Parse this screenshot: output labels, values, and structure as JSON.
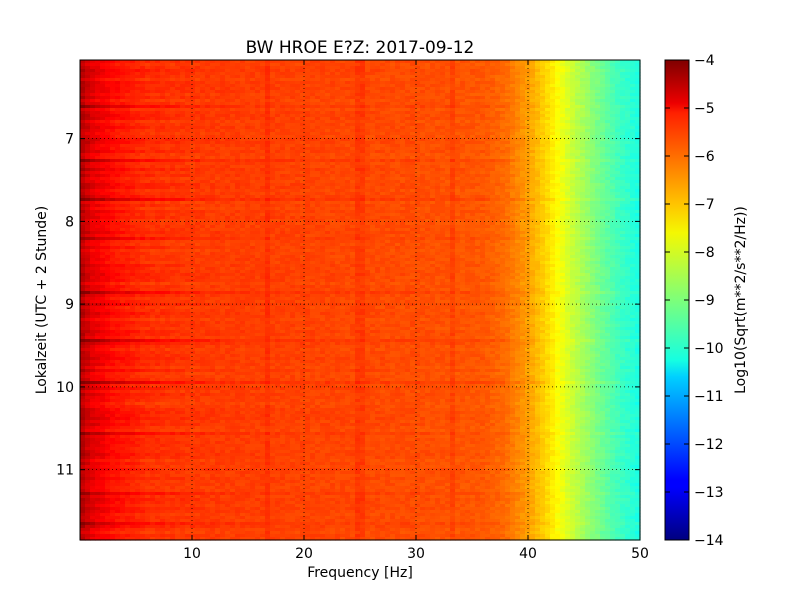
{
  "chart_data": {
    "type": "heatmap",
    "title": "BW HROE E?Z: 2017-09-12",
    "xlabel": "Frequency [Hz]",
    "ylabel": "Lokalzeit (UTC + 2 Stunde)",
    "colorbar_label": "Log10(Sqrt(m**2/s**2/Hz))",
    "xlim": [
      0,
      50
    ],
    "ylim": [
      6.05,
      11.85
    ],
    "y_inverted": true,
    "x_ticks": [
      10,
      20,
      30,
      40,
      50
    ],
    "y_ticks": [
      7,
      8,
      9,
      10,
      11
    ],
    "clim": [
      -14,
      -4
    ],
    "colorbar_ticks": [
      -4,
      -5,
      -6,
      -7,
      -8,
      -9,
      -10,
      -11,
      -12,
      -13,
      -14
    ],
    "colormap": "jet",
    "grid": true,
    "grid_style": "dotted",
    "spectrum_profile": {
      "frequency_hz": [
        0,
        1,
        3,
        6,
        10,
        20,
        30,
        36,
        38,
        40,
        42,
        44,
        46,
        48,
        50
      ],
      "log10_amplitude": [
        -4.5,
        -5.0,
        -5.4,
        -5.7,
        -5.8,
        -5.9,
        -6.0,
        -6.1,
        -6.3,
        -6.8,
        -7.5,
        -8.3,
        -9.0,
        -9.6,
        -10.0
      ]
    },
    "spectral_lines_hz": [
      16.7,
      25,
      33.3
    ],
    "strong_rows_hours": [
      6.6,
      7.25,
      7.75,
      8.2,
      8.85,
      9.45,
      9.95,
      10.55,
      11.3,
      11.65
    ]
  }
}
